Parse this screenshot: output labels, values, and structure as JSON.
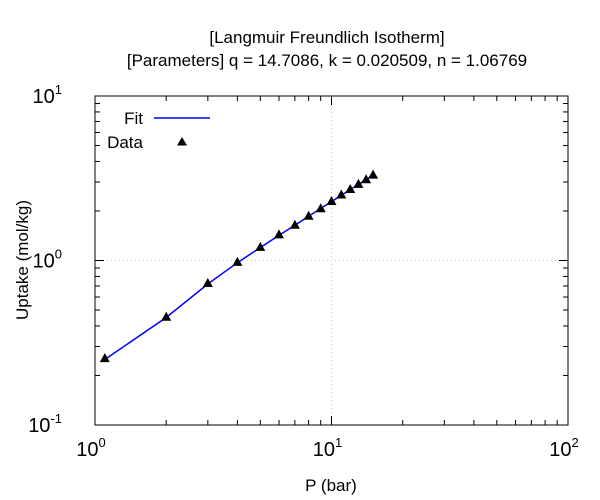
{
  "chart_data": {
    "type": "scatter",
    "title_lines": [
      "[Langmuir Freundlich Isotherm]",
      "[Parameters] q = 14.7086, k = 0.020509, n = 1.06769"
    ],
    "xlabel": "P (bar)",
    "ylabel": "Uptake (mol/kg)",
    "xscale": "log",
    "yscale": "log",
    "xlim": [
      1,
      100
    ],
    "ylim": [
      0.1,
      10
    ],
    "x_ticks": [
      {
        "value": 1,
        "base": "10",
        "exp": "0"
      },
      {
        "value": 10,
        "base": "10",
        "exp": "1"
      },
      {
        "value": 100,
        "base": "10",
        "exp": "2"
      }
    ],
    "y_ticks": [
      {
        "value": 0.1,
        "base": "10",
        "exp": "-1"
      },
      {
        "value": 1,
        "base": "10",
        "exp": "0"
      },
      {
        "value": 10,
        "base": "10",
        "exp": "1"
      }
    ],
    "grid": true,
    "legend_position": "top-left",
    "series": [
      {
        "name": "Fit",
        "kind": "line",
        "color": "#0000ff",
        "x": [
          1.1,
          2,
          3,
          4,
          5,
          6,
          7,
          8,
          9,
          10,
          11,
          12,
          13,
          14,
          15
        ],
        "y": [
          0.25,
          0.45,
          0.72,
          0.97,
          1.2,
          1.42,
          1.64,
          1.86,
          2.07,
          2.28,
          2.49,
          2.69,
          2.9,
          3.1,
          3.3
        ]
      },
      {
        "name": "Data",
        "kind": "scatter",
        "marker": "triangle",
        "color": "#000000",
        "x": [
          1.1,
          2,
          3,
          4,
          5,
          6,
          7,
          8,
          9,
          10,
          11,
          12,
          13,
          14,
          15
        ],
        "y": [
          0.255,
          0.455,
          0.73,
          0.98,
          1.21,
          1.44,
          1.65,
          1.87,
          2.08,
          2.3,
          2.52,
          2.72,
          2.92,
          3.12,
          3.33
        ]
      }
    ]
  }
}
